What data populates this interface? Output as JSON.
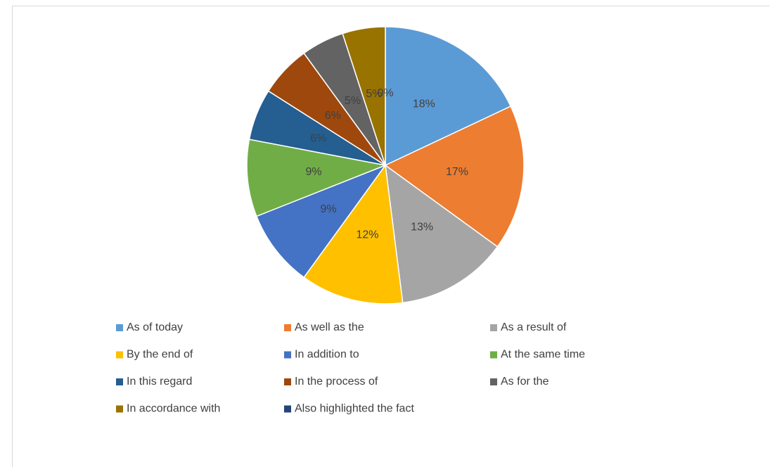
{
  "chart_data": {
    "type": "pie",
    "categories": [
      "As of today",
      "As well as the",
      "As a result of",
      "By the end of",
      "In addition to",
      "At the same time",
      "In this regard",
      "In the process of",
      "As for the",
      "In accordance with",
      "Also highlighted the fact"
    ],
    "values": [
      18,
      17,
      13,
      12,
      9,
      9,
      6,
      6,
      5,
      5,
      0
    ],
    "value_labels": [
      "18%",
      "17%",
      "13%",
      "12%",
      "9%",
      "9%",
      "6%",
      "6%",
      "5%",
      "5%",
      "0%"
    ],
    "colors": [
      "#5b9bd5",
      "#ed7d31",
      "#a5a5a5",
      "#ffc000",
      "#4472c4",
      "#70ad47",
      "#255e91",
      "#9e480e",
      "#636363",
      "#997300",
      "#264478"
    ],
    "legend": "bottom"
  }
}
